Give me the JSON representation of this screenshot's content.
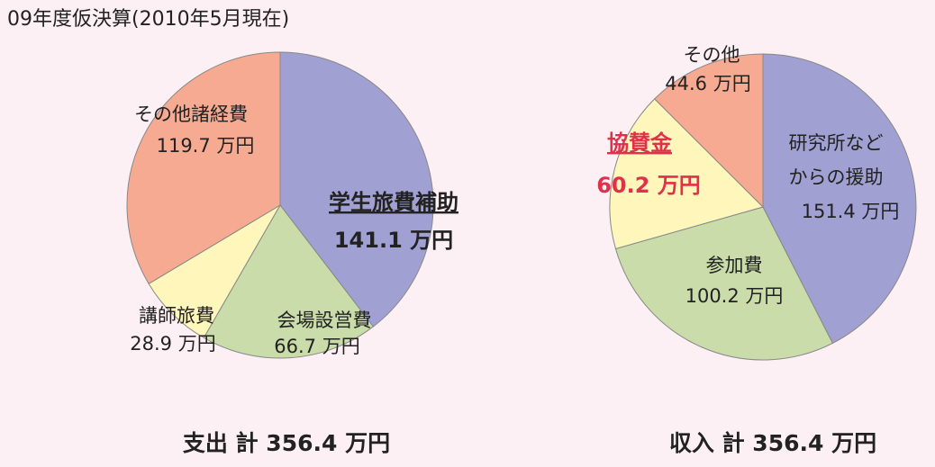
{
  "title": "09年度仮決算(2010年5月現在)",
  "chart_data": [
    {
      "type": "pie",
      "caption": "支出 計 356.4 万円",
      "categories": [
        "学生旅費補助",
        "会場設営費",
        "講師旅費",
        "その他諸経費"
      ],
      "values": [
        141.1,
        66.7,
        28.9,
        119.7
      ],
      "value_labels": [
        "141.1 万円",
        "66.7 万円",
        "28.9 万円",
        "119.7 万円"
      ],
      "colors": [
        "#a0a0d2",
        "#c9dca9",
        "#fff6bb",
        "#f6aa92"
      ]
    },
    {
      "type": "pie",
      "caption": "収入 計 356.4 万円",
      "categories": [
        "研究所など\nからの援助",
        "参加費",
        "協賛金",
        "その他"
      ],
      "values": [
        151.4,
        100.2,
        60.2,
        44.6
      ],
      "value_labels": [
        "151.4 万円",
        "100.2 万円",
        "60.2 万円",
        "44.6 万円"
      ],
      "colors": [
        "#a0a0d2",
        "#c9dca9",
        "#fff6bb",
        "#f6aa92"
      ]
    }
  ]
}
